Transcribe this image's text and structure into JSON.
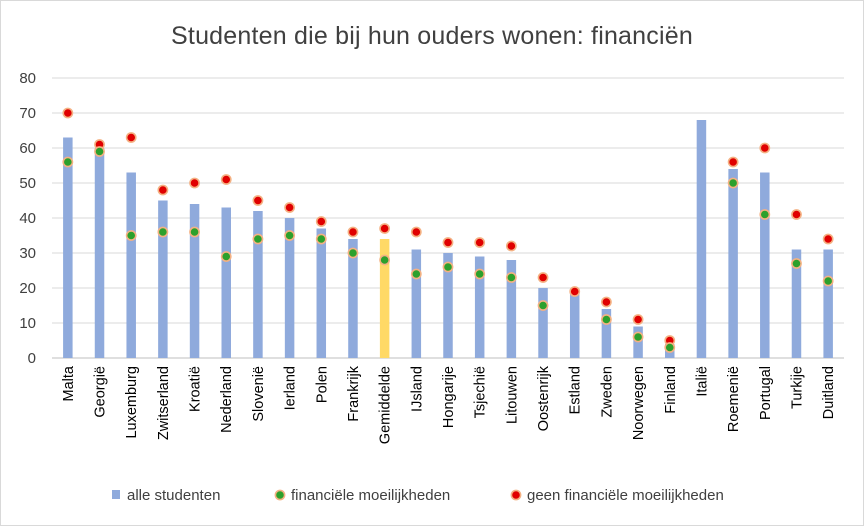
{
  "chart_data": {
    "type": "bar",
    "title": "Studenten die bij hun ouders wonen: financiën",
    "xlabel": "",
    "ylabel": "",
    "ylim": [
      0,
      80
    ],
    "yticks": [
      "0",
      "10",
      "20",
      "30",
      "40",
      "50",
      "60",
      "70",
      "80"
    ],
    "grid": true,
    "legend_position": "bottom",
    "categories": [
      "Malta",
      "Georgië",
      "Luxemburg",
      "Zwitserland",
      "Kroatië",
      "Nederland",
      "Slovenië",
      "Ierland",
      "Polen",
      "Frankrijk",
      "Gemiddelde",
      "IJsland",
      "Hongarije",
      "Tsjechië",
      "Litouwen",
      "Oostenrijk",
      "Estland",
      "Zweden",
      "Noorwegen",
      "Finland",
      "Italië",
      "Roemenië",
      "Portugal",
      "Turkije",
      "Duitland"
    ],
    "highlight_category": "Gemiddelde",
    "colors": {
      "bar": "#8faadc",
      "highlight_bar": "#ffd966",
      "financial_difficulties": "#2ca02c",
      "financial_difficulties_edge": "#f4b183",
      "no_financial_difficulties": "#e00000",
      "no_financial_difficulties_edge": "#f4b183",
      "grid": "#d9d9d9"
    },
    "series": [
      {
        "name": "alle studenten",
        "kind": "bar",
        "values": [
          63,
          60,
          53,
          45,
          44,
          43,
          42,
          40,
          37,
          34,
          34,
          31,
          30,
          29,
          28,
          20,
          19,
          14,
          9,
          4,
          68,
          54,
          53,
          31,
          31
        ]
      },
      {
        "name": "financiële moeilijkheden",
        "kind": "point",
        "values": [
          56,
          59,
          35,
          36,
          36,
          29,
          34,
          35,
          34,
          30,
          28,
          24,
          26,
          24,
          23,
          15,
          null,
          11,
          6,
          3,
          null,
          50,
          41,
          27,
          22
        ]
      },
      {
        "name": "geen financiële moeilijkheden",
        "kind": "point",
        "values": [
          70,
          61,
          63,
          48,
          50,
          51,
          45,
          43,
          39,
          36,
          37,
          36,
          33,
          33,
          32,
          23,
          19,
          16,
          11,
          5,
          null,
          56,
          60,
          41,
          34
        ]
      }
    ]
  }
}
